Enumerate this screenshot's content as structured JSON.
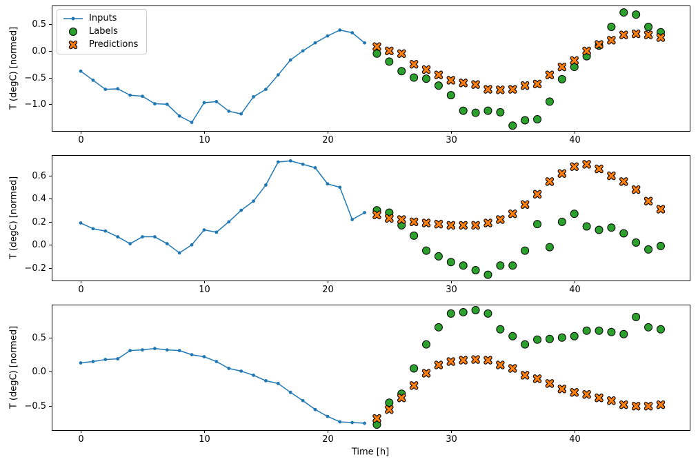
{
  "figure": {
    "background": "#ffffff",
    "text_color": "#000000",
    "spine_color": "#000000"
  },
  "chart_data": [
    {
      "type": "line",
      "title": "",
      "ylabel": "T (degC) [normed]",
      "xlabel": "",
      "xlim": [
        -2.35,
        49.35
      ],
      "ylim": [
        -1.5,
        0.85
      ],
      "grid": false,
      "legend": "upper left",
      "xticks": [
        {
          "v": 0,
          "label": "0"
        },
        {
          "v": 10,
          "label": "10"
        },
        {
          "v": 20,
          "label": "20"
        },
        {
          "v": 30,
          "label": "30"
        },
        {
          "v": 40,
          "label": "40"
        }
      ],
      "yticks": [
        {
          "v": 0.5,
          "label": "0.5"
        },
        {
          "v": 0.0,
          "label": "0.0"
        },
        {
          "v": -0.5,
          "label": "−0.5"
        },
        {
          "v": -1.0,
          "label": "−1.0"
        }
      ],
      "series": [
        {
          "name": "Inputs",
          "style": "line-dot",
          "color": "#1f77b4",
          "x": [
            0,
            1,
            2,
            3,
            4,
            5,
            6,
            7,
            8,
            9,
            10,
            11,
            12,
            13,
            14,
            15,
            16,
            17,
            18,
            19,
            20,
            21,
            22,
            23
          ],
          "y": [
            -0.38,
            -0.55,
            -0.72,
            -0.71,
            -0.83,
            -0.85,
            -0.99,
            -1.0,
            -1.22,
            -1.34,
            -0.97,
            -0.95,
            -1.13,
            -1.18,
            -0.86,
            -0.72,
            -0.45,
            -0.17,
            0.0,
            0.15,
            0.28,
            0.39,
            0.34,
            0.15
          ]
        },
        {
          "name": "Labels",
          "style": "scatter-circle",
          "color": "#2ca02c",
          "edge": "#000000",
          "x": [
            24,
            25,
            26,
            27,
            28,
            29,
            30,
            31,
            32,
            33,
            34,
            35,
            36,
            37,
            38,
            39,
            40,
            41,
            42,
            43,
            44,
            45,
            46,
            47
          ],
          "y": [
            -0.05,
            -0.2,
            -0.38,
            -0.5,
            -0.52,
            -0.65,
            -0.83,
            -1.12,
            -1.16,
            -1.12,
            -1.15,
            -1.4,
            -1.3,
            -1.28,
            -0.95,
            -0.53,
            -0.3,
            -0.1,
            0.1,
            0.45,
            0.72,
            0.68,
            0.45,
            0.35
          ]
        },
        {
          "name": "Predictions",
          "style": "scatter-x",
          "color": "#ff7f0e",
          "edge": "#000000",
          "x": [
            24,
            25,
            26,
            27,
            28,
            29,
            30,
            31,
            32,
            33,
            34,
            35,
            36,
            37,
            38,
            39,
            40,
            41,
            42,
            43,
            44,
            45,
            46,
            47
          ],
          "y": [
            0.08,
            0.0,
            -0.05,
            -0.25,
            -0.35,
            -0.45,
            -0.55,
            -0.6,
            -0.63,
            -0.72,
            -0.73,
            -0.72,
            -0.65,
            -0.62,
            -0.45,
            -0.3,
            -0.18,
            0.0,
            0.12,
            0.2,
            0.3,
            0.32,
            0.3,
            0.25
          ]
        }
      ]
    },
    {
      "type": "line",
      "title": "",
      "ylabel": "T (degC) [normed]",
      "xlabel": "",
      "xlim": [
        -2.35,
        49.35
      ],
      "ylim": [
        -0.31,
        0.78
      ],
      "grid": false,
      "legend": "none",
      "xticks": [
        {
          "v": 0,
          "label": "0"
        },
        {
          "v": 10,
          "label": "10"
        },
        {
          "v": 20,
          "label": "20"
        },
        {
          "v": 30,
          "label": "30"
        },
        {
          "v": 40,
          "label": "40"
        }
      ],
      "yticks": [
        {
          "v": 0.6,
          "label": "0.6"
        },
        {
          "v": 0.4,
          "label": "0.4"
        },
        {
          "v": 0.2,
          "label": "0.2"
        },
        {
          "v": 0.0,
          "label": "0.0"
        },
        {
          "v": -0.2,
          "label": "−0.2"
        }
      ],
      "series": [
        {
          "name": "Inputs",
          "style": "line-dot",
          "color": "#1f77b4",
          "x": [
            0,
            1,
            2,
            3,
            4,
            5,
            6,
            7,
            8,
            9,
            10,
            11,
            12,
            13,
            14,
            15,
            16,
            17,
            18,
            19,
            20,
            21,
            22,
            23
          ],
          "y": [
            0.19,
            0.14,
            0.12,
            0.07,
            0.01,
            0.07,
            0.07,
            0.01,
            -0.07,
            0.0,
            0.13,
            0.11,
            0.2,
            0.3,
            0.38,
            0.52,
            0.72,
            0.73,
            0.7,
            0.67,
            0.53,
            0.5,
            0.22,
            0.28
          ]
        },
        {
          "name": "Labels",
          "style": "scatter-circle",
          "color": "#2ca02c",
          "edge": "#000000",
          "x": [
            24,
            25,
            26,
            27,
            28,
            29,
            30,
            31,
            32,
            33,
            34,
            35,
            36,
            37,
            38,
            39,
            40,
            41,
            42,
            43,
            44,
            45,
            46,
            47
          ],
          "y": [
            0.3,
            0.28,
            0.17,
            0.08,
            -0.05,
            -0.1,
            -0.15,
            -0.18,
            -0.22,
            -0.26,
            -0.18,
            -0.18,
            -0.05,
            0.18,
            -0.02,
            0.2,
            0.27,
            0.16,
            0.13,
            0.15,
            0.1,
            0.02,
            -0.04,
            -0.01
          ]
        },
        {
          "name": "Predictions",
          "style": "scatter-x",
          "color": "#ff7f0e",
          "edge": "#000000",
          "x": [
            24,
            25,
            26,
            27,
            28,
            29,
            30,
            31,
            32,
            33,
            34,
            35,
            36,
            37,
            38,
            39,
            40,
            41,
            42,
            43,
            44,
            45,
            46,
            47
          ],
          "y": [
            0.26,
            0.23,
            0.22,
            0.2,
            0.19,
            0.18,
            0.17,
            0.17,
            0.17,
            0.19,
            0.22,
            0.27,
            0.35,
            0.44,
            0.55,
            0.62,
            0.68,
            0.7,
            0.66,
            0.6,
            0.55,
            0.48,
            0.38,
            0.31
          ]
        }
      ]
    },
    {
      "type": "line",
      "title": "",
      "ylabel": "T (degC) [normed]",
      "xlabel": "Time [h]",
      "xlim": [
        -2.35,
        49.35
      ],
      "ylim": [
        -0.85,
        0.98
      ],
      "grid": false,
      "legend": "none",
      "xticks": [
        {
          "v": 0,
          "label": "0"
        },
        {
          "v": 10,
          "label": "10"
        },
        {
          "v": 20,
          "label": "20"
        },
        {
          "v": 30,
          "label": "30"
        },
        {
          "v": 40,
          "label": "40"
        }
      ],
      "yticks": [
        {
          "v": 0.5,
          "label": "0.5"
        },
        {
          "v": 0.0,
          "label": "0.0"
        },
        {
          "v": -0.5,
          "label": "−0.5"
        }
      ],
      "series": [
        {
          "name": "Inputs",
          "style": "line-dot",
          "color": "#1f77b4",
          "x": [
            0,
            1,
            2,
            3,
            4,
            5,
            6,
            7,
            8,
            9,
            10,
            11,
            12,
            13,
            14,
            15,
            16,
            17,
            18,
            19,
            20,
            21,
            22,
            23
          ],
          "y": [
            0.13,
            0.15,
            0.18,
            0.19,
            0.31,
            0.32,
            0.34,
            0.32,
            0.31,
            0.25,
            0.22,
            0.15,
            0.05,
            0.01,
            -0.05,
            -0.13,
            -0.17,
            -0.3,
            -0.42,
            -0.55,
            -0.65,
            -0.73,
            -0.74,
            -0.75
          ]
        },
        {
          "name": "Labels",
          "style": "scatter-circle",
          "color": "#2ca02c",
          "edge": "#000000",
          "x": [
            24,
            25,
            26,
            27,
            28,
            29,
            30,
            31,
            32,
            33,
            34,
            35,
            36,
            37,
            38,
            39,
            40,
            41,
            42,
            43,
            44,
            45,
            46,
            47
          ],
          "y": [
            -0.77,
            -0.45,
            -0.32,
            0.05,
            0.4,
            0.65,
            0.85,
            0.87,
            0.9,
            0.85,
            0.62,
            0.52,
            0.4,
            0.47,
            0.48,
            0.5,
            0.52,
            0.6,
            0.6,
            0.58,
            0.55,
            0.8,
            0.65,
            0.62
          ]
        },
        {
          "name": "Predictions",
          "style": "scatter-x",
          "color": "#ff7f0e",
          "edge": "#000000",
          "x": [
            24,
            25,
            26,
            27,
            28,
            29,
            30,
            31,
            32,
            33,
            34,
            35,
            36,
            37,
            38,
            39,
            40,
            41,
            42,
            43,
            44,
            45,
            46,
            47
          ],
          "y": [
            -0.68,
            -0.55,
            -0.38,
            -0.2,
            -0.02,
            0.1,
            0.15,
            0.17,
            0.18,
            0.17,
            0.1,
            0.05,
            -0.05,
            -0.1,
            -0.17,
            -0.25,
            -0.3,
            -0.33,
            -0.38,
            -0.42,
            -0.48,
            -0.5,
            -0.5,
            -0.48
          ]
        }
      ]
    }
  ]
}
